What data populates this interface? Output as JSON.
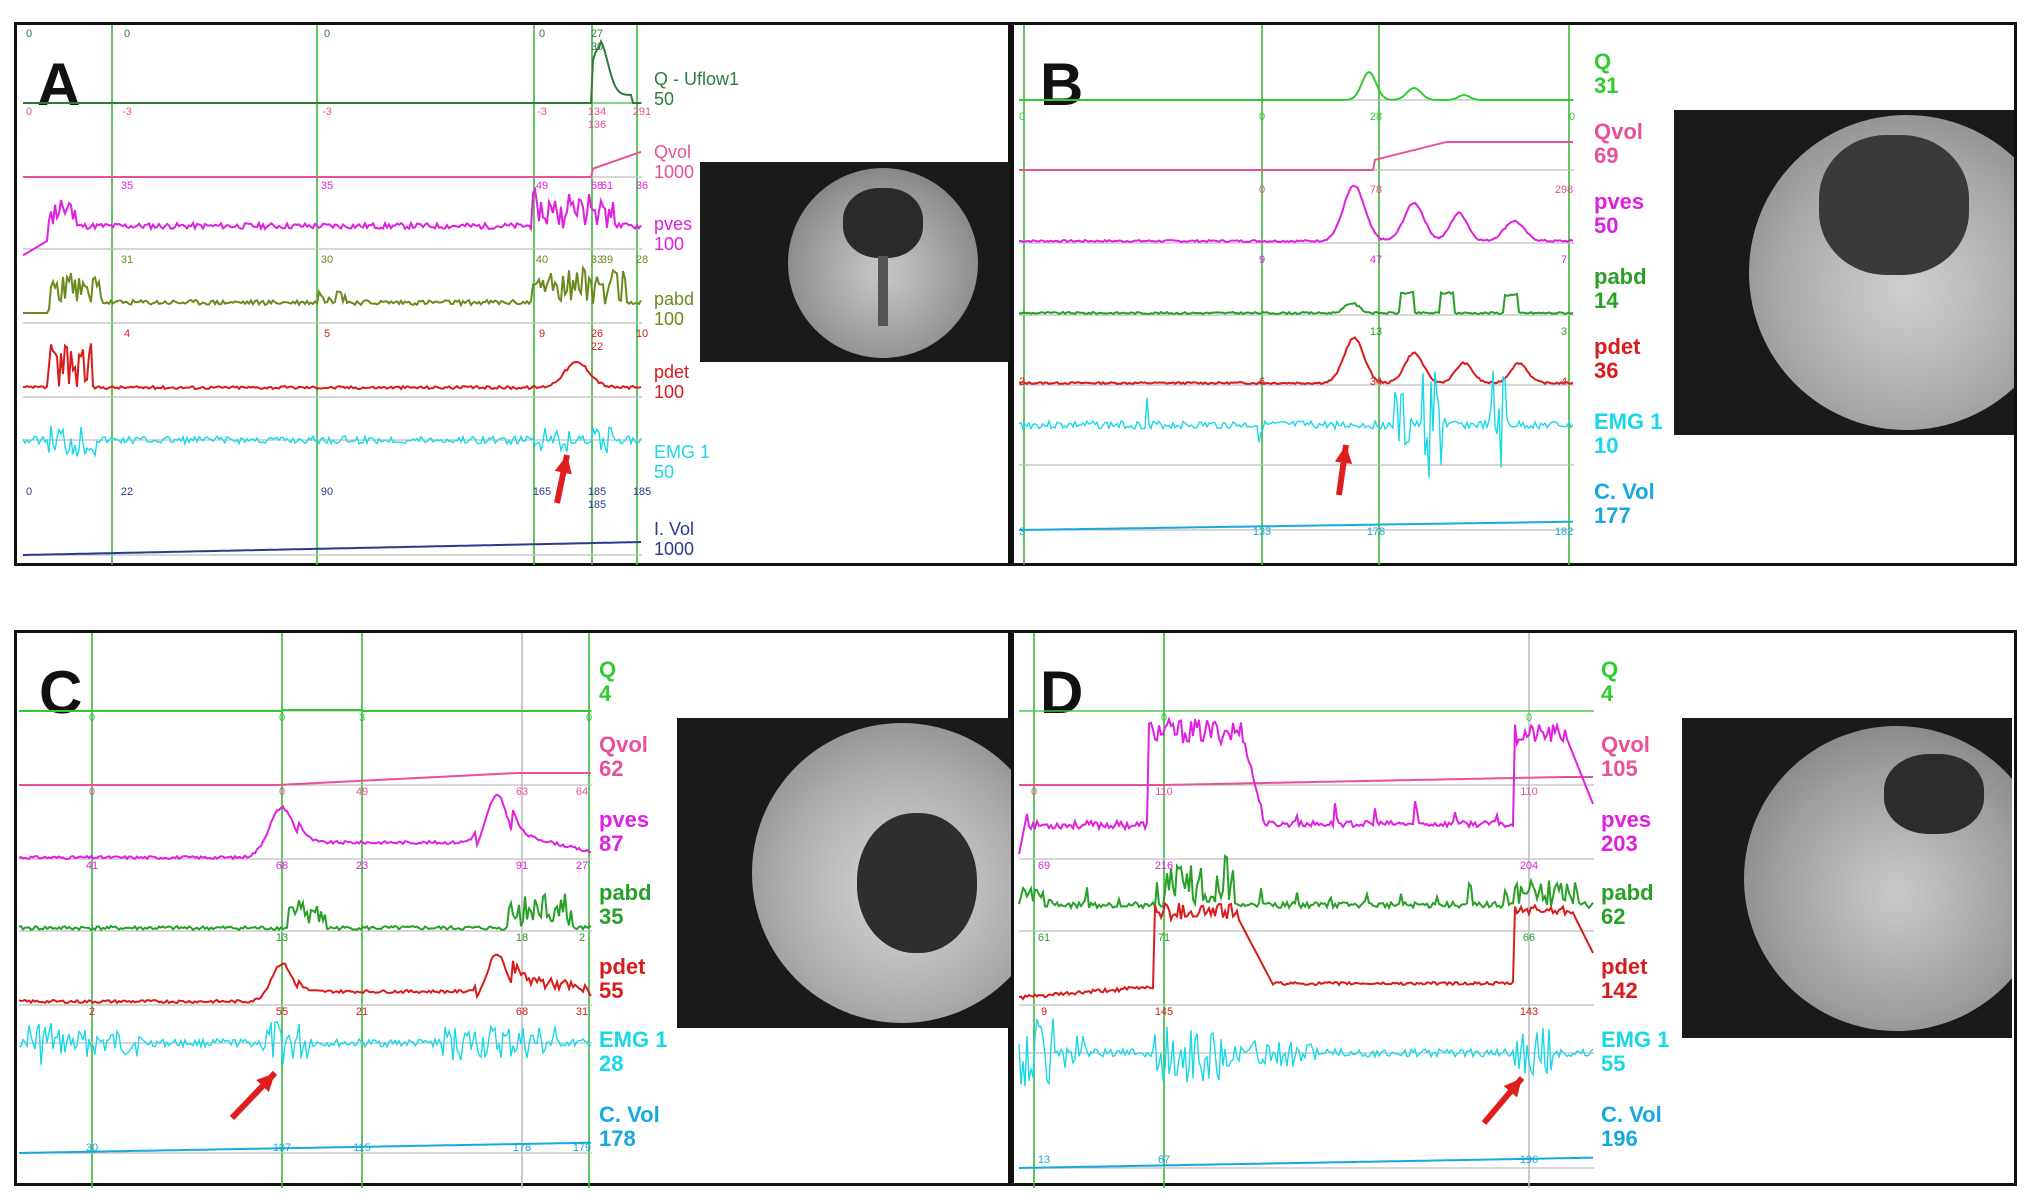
{
  "colors": {
    "Q": "#2ecc2e",
    "Qvol": "#e8509a",
    "pves": "#e020e0",
    "pabd": "#28a028",
    "pabd_A": "#6b8a1e",
    "pdet": "#d81c1c",
    "EMG": "#18d8e8",
    "IVol": "#2a3a8c",
    "CVol": "#18a8e0",
    "arrow": "#e01e1e",
    "grid_green": "#39b839",
    "grid_grey": "#bdbdbd"
  },
  "chart_data": [
    {
      "type": "line",
      "panel": "A",
      "channels": [
        {
          "name": "Q - Uflow1",
          "scale": "50",
          "markers": [
            "0",
            "0",
            "0",
            "0",
            "27",
            "30"
          ]
        },
        {
          "name": "Qvol",
          "scale": "1000",
          "markers": [
            "0",
            "-3",
            "-3",
            "-3",
            "134",
            "136",
            "291"
          ]
        },
        {
          "name": "pves",
          "scale": "100",
          "markers": [
            "35",
            "35",
            "49",
            "68",
            "61",
            "36"
          ]
        },
        {
          "name": "pabd",
          "scale": "100",
          "markers": [
            "31",
            "30",
            "40",
            "33",
            "39",
            "28"
          ]
        },
        {
          "name": "pdet",
          "scale": "100",
          "markers": [
            "4",
            "5",
            "9",
            "26",
            "22",
            "10"
          ]
        },
        {
          "name": "EMG 1",
          "scale": "50",
          "markers": []
        },
        {
          "name": "I. Vol",
          "scale": "1000",
          "markers": [
            "0",
            "22",
            "90",
            "165",
            "185",
            "185",
            "185"
          ]
        }
      ]
    },
    {
      "type": "line",
      "panel": "B",
      "channels": [
        {
          "name": "Q",
          "scale": "31",
          "markers": [
            "0",
            "0",
            "28",
            "0"
          ]
        },
        {
          "name": "Qvol",
          "scale": "69",
          "markers": [
            "0",
            "78",
            "298"
          ]
        },
        {
          "name": "pves",
          "scale": "50",
          "markers": [
            "9",
            "47",
            "7"
          ]
        },
        {
          "name": "pabd",
          "scale": "14",
          "markers": [
            "13",
            "3"
          ]
        },
        {
          "name": "pdet",
          "scale": "36",
          "markers": [
            "2",
            "6",
            "34",
            "4"
          ]
        },
        {
          "name": "EMG 1",
          "scale": "10",
          "markers": []
        },
        {
          "name": "C. Vol",
          "scale": "177",
          "markers": [
            "3",
            "133",
            "178",
            "182"
          ]
        }
      ]
    },
    {
      "type": "line",
      "panel": "C",
      "channels": [
        {
          "name": "Q",
          "scale": "4",
          "markers": [
            "0",
            "0",
            "3",
            "0"
          ]
        },
        {
          "name": "Qvol",
          "scale": "62",
          "markers": [
            "0",
            "0",
            "49",
            "63",
            "64"
          ]
        },
        {
          "name": "pves",
          "scale": "87",
          "markers": [
            "41",
            "68",
            "23",
            "91",
            "27"
          ]
        },
        {
          "name": "pabd",
          "scale": "35",
          "markers": [
            "13",
            "18",
            "2"
          ]
        },
        {
          "name": "pdet",
          "scale": "55",
          "markers": [
            "2",
            "55",
            "21",
            "68",
            "31"
          ]
        },
        {
          "name": "EMG 1",
          "scale": "28",
          "markers": []
        },
        {
          "name": "C. Vol",
          "scale": "178",
          "markers": [
            "30",
            "107",
            "115",
            "178",
            "179"
          ]
        }
      ]
    },
    {
      "type": "line",
      "panel": "D",
      "channels": [
        {
          "name": "Q",
          "scale": "4",
          "markers": [
            "0",
            "0"
          ]
        },
        {
          "name": "Qvol",
          "scale": "105",
          "markers": [
            "0",
            "110",
            "110"
          ]
        },
        {
          "name": "pves",
          "scale": "203",
          "markers": [
            "69",
            "216",
            "204"
          ]
        },
        {
          "name": "pabd",
          "scale": "62",
          "markers": [
            "61",
            "71",
            "66"
          ]
        },
        {
          "name": "pdet",
          "scale": "142",
          "markers": [
            "9",
            "145",
            "143"
          ]
        },
        {
          "name": "EMG 1",
          "scale": "55",
          "markers": []
        },
        {
          "name": "C. Vol",
          "scale": "196",
          "markers": [
            "13",
            "67",
            "196"
          ]
        }
      ]
    }
  ],
  "panels": {
    "A": {
      "letter": "A"
    },
    "B": {
      "letter": "B"
    },
    "C": {
      "letter": "C"
    },
    "D": {
      "letter": "D"
    }
  }
}
